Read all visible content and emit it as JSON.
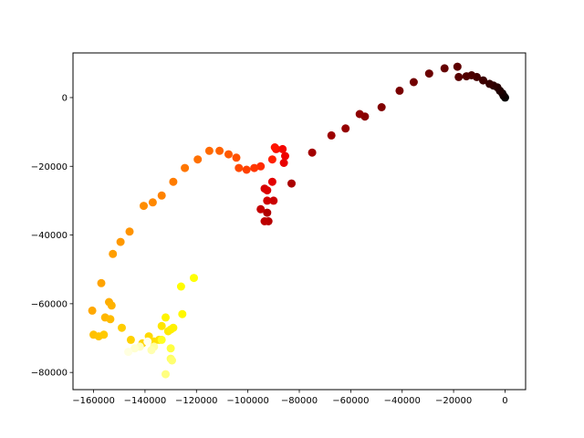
{
  "chart_data": {
    "type": "scatter",
    "title": "",
    "xlabel": "",
    "ylabel": "",
    "xlim": [
      -168000,
      8000
    ],
    "ylim": [
      -85000,
      13000
    ],
    "grid": false,
    "colormap": "afmhot (dark to light along point order)",
    "x_ticks": [
      -160000,
      -140000,
      -120000,
      -100000,
      -80000,
      -60000,
      -40000,
      -20000,
      0
    ],
    "x_tick_labels": [
      "−160000",
      "−140000",
      "−120000",
      "−100000",
      "−80000",
      "−60000",
      "−40000",
      "−20000",
      "0"
    ],
    "y_ticks": [
      -80000,
      -60000,
      -40000,
      -20000,
      0
    ],
    "y_tick_labels": [
      "−80000",
      "−60000",
      "−40000",
      "−20000",
      "0"
    ],
    "points": [
      {
        "x": 0,
        "y": 0,
        "color": "#000000"
      },
      {
        "x": -500,
        "y": 500,
        "color": "#0a0000"
      },
      {
        "x": -1000,
        "y": 1200,
        "color": "#140000"
      },
      {
        "x": -2000,
        "y": 2000,
        "color": "#1e0000"
      },
      {
        "x": -3000,
        "y": 3000,
        "color": "#250000"
      },
      {
        "x": -4500,
        "y": 3500,
        "color": "#2d0000"
      },
      {
        "x": -6000,
        "y": 4000,
        "color": "#350000"
      },
      {
        "x": -8500,
        "y": 5000,
        "color": "#3c0000"
      },
      {
        "x": -11000,
        "y": 6000,
        "color": "#430000"
      },
      {
        "x": -13000,
        "y": 6500,
        "color": "#4a0000"
      },
      {
        "x": -15000,
        "y": 6200,
        "color": "#510000"
      },
      {
        "x": -18000,
        "y": 6000,
        "color": "#570000"
      },
      {
        "x": -18500,
        "y": 9000,
        "color": "#5d0000"
      },
      {
        "x": -23500,
        "y": 8500,
        "color": "#640000"
      },
      {
        "x": -29500,
        "y": 7000,
        "color": "#6b0000"
      },
      {
        "x": -35500,
        "y": 4500,
        "color": "#720000"
      },
      {
        "x": -41000,
        "y": 2000,
        "color": "#790000"
      },
      {
        "x": -48000,
        "y": -2800,
        "color": "#800000"
      },
      {
        "x": -54500,
        "y": -5500,
        "color": "#870000"
      },
      {
        "x": -56500,
        "y": -4800,
        "color": "#8e0000"
      },
      {
        "x": -62000,
        "y": -9000,
        "color": "#950000"
      },
      {
        "x": -67500,
        "y": -11000,
        "color": "#9c0000"
      },
      {
        "x": -75000,
        "y": -16000,
        "color": "#a30000"
      },
      {
        "x": -83000,
        "y": -25000,
        "color": "#aa0000"
      },
      {
        "x": -92500,
        "y": -33500,
        "color": "#b10000"
      },
      {
        "x": -92000,
        "y": -36000,
        "color": "#b70000"
      },
      {
        "x": -93500,
        "y": -36000,
        "color": "#bd0000"
      },
      {
        "x": -95000,
        "y": -32500,
        "color": "#c40000"
      },
      {
        "x": -90000,
        "y": -30000,
        "color": "#ca0000"
      },
      {
        "x": -92500,
        "y": -30000,
        "color": "#d00000"
      },
      {
        "x": -93500,
        "y": -26500,
        "color": "#d60000"
      },
      {
        "x": -92500,
        "y": -27000,
        "color": "#dc0000"
      },
      {
        "x": -90500,
        "y": -24500,
        "color": "#e20000"
      },
      {
        "x": -86000,
        "y": -19000,
        "color": "#e80000"
      },
      {
        "x": -85500,
        "y": -17000,
        "color": "#ee0000"
      },
      {
        "x": -86500,
        "y": -15000,
        "color": "#f40500"
      },
      {
        "x": -89000,
        "y": -15000,
        "color": "#f90d00"
      },
      {
        "x": -89500,
        "y": -14500,
        "color": "#ff1400"
      },
      {
        "x": -90500,
        "y": -18000,
        "color": "#ff2000"
      },
      {
        "x": -95000,
        "y": -20000,
        "color": "#ff2c00"
      },
      {
        "x": -97500,
        "y": -20500,
        "color": "#ff3600"
      },
      {
        "x": -100500,
        "y": -21000,
        "color": "#ff4000"
      },
      {
        "x": -103500,
        "y": -20500,
        "color": "#ff4a00"
      },
      {
        "x": -104500,
        "y": -17500,
        "color": "#ff5200"
      },
      {
        "x": -107500,
        "y": -16500,
        "color": "#ff5a00"
      },
      {
        "x": -111000,
        "y": -15500,
        "color": "#ff6200"
      },
      {
        "x": -115000,
        "y": -15500,
        "color": "#ff6a00"
      },
      {
        "x": -119500,
        "y": -18000,
        "color": "#ff7000"
      },
      {
        "x": -124500,
        "y": -20500,
        "color": "#ff7600"
      },
      {
        "x": -129000,
        "y": -24500,
        "color": "#ff7c00"
      },
      {
        "x": -133500,
        "y": -28500,
        "color": "#ff8200"
      },
      {
        "x": -137000,
        "y": -30500,
        "color": "#ff8800"
      },
      {
        "x": -140500,
        "y": -31500,
        "color": "#ff8d00"
      },
      {
        "x": -146000,
        "y": -39000,
        "color": "#ff9300"
      },
      {
        "x": -149500,
        "y": -42000,
        "color": "#ff9800"
      },
      {
        "x": -152500,
        "y": -45500,
        "color": "#ff9e00"
      },
      {
        "x": -157000,
        "y": -54000,
        "color": "#ffa300"
      },
      {
        "x": -160500,
        "y": -62000,
        "color": "#ffa800"
      },
      {
        "x": -154000,
        "y": -59500,
        "color": "#ffad00"
      },
      {
        "x": -153000,
        "y": -60500,
        "color": "#ffb200"
      },
      {
        "x": -155500,
        "y": -64000,
        "color": "#ffb700"
      },
      {
        "x": -153500,
        "y": -64500,
        "color": "#ffbb00"
      },
      {
        "x": -160000,
        "y": -69000,
        "color": "#ffc000"
      },
      {
        "x": -158000,
        "y": -69500,
        "color": "#ffc400"
      },
      {
        "x": -156000,
        "y": -69000,
        "color": "#ffc900"
      },
      {
        "x": -149000,
        "y": -67000,
        "color": "#ffcd00"
      },
      {
        "x": -145500,
        "y": -70500,
        "color": "#ffd100"
      },
      {
        "x": -141000,
        "y": -71500,
        "color": "#ffd500"
      },
      {
        "x": -138500,
        "y": -69500,
        "color": "#ffd900"
      },
      {
        "x": -136500,
        "y": -71000,
        "color": "#ffdd00"
      },
      {
        "x": -134500,
        "y": -70500,
        "color": "#ffe100"
      },
      {
        "x": -133500,
        "y": -66500,
        "color": "#ffe500"
      },
      {
        "x": -131000,
        "y": -68000,
        "color": "#ffe900"
      },
      {
        "x": -130000,
        "y": -67500,
        "color": "#ffed00"
      },
      {
        "x": -129000,
        "y": -67000,
        "color": "#fff100"
      },
      {
        "x": -132000,
        "y": -64000,
        "color": "#fff400"
      },
      {
        "x": -125500,
        "y": -63000,
        "color": "#fff800"
      },
      {
        "x": -126000,
        "y": -55000,
        "color": "#fffc00"
      },
      {
        "x": -121000,
        "y": -52500,
        "color": "#ffff05"
      },
      {
        "x": -133500,
        "y": -70500,
        "color": "#ffff20"
      },
      {
        "x": -130000,
        "y": -73000,
        "color": "#ffff40"
      },
      {
        "x": -130000,
        "y": -76000,
        "color": "#ffff60"
      },
      {
        "x": -129500,
        "y": -76500,
        "color": "#ffff70"
      },
      {
        "x": -132000,
        "y": -80500,
        "color": "#ffff80"
      },
      {
        "x": -136500,
        "y": -72500,
        "color": "#ffffa0"
      },
      {
        "x": -137500,
        "y": -73500,
        "color": "#ffffb0"
      },
      {
        "x": -142000,
        "y": -72500,
        "color": "#ffffc0"
      },
      {
        "x": -144000,
        "y": -73000,
        "color": "#ffffd0"
      },
      {
        "x": -146500,
        "y": -74000,
        "color": "#ffffe0"
      },
      {
        "x": -139000,
        "y": -71000,
        "color": "#fffff0"
      }
    ]
  }
}
